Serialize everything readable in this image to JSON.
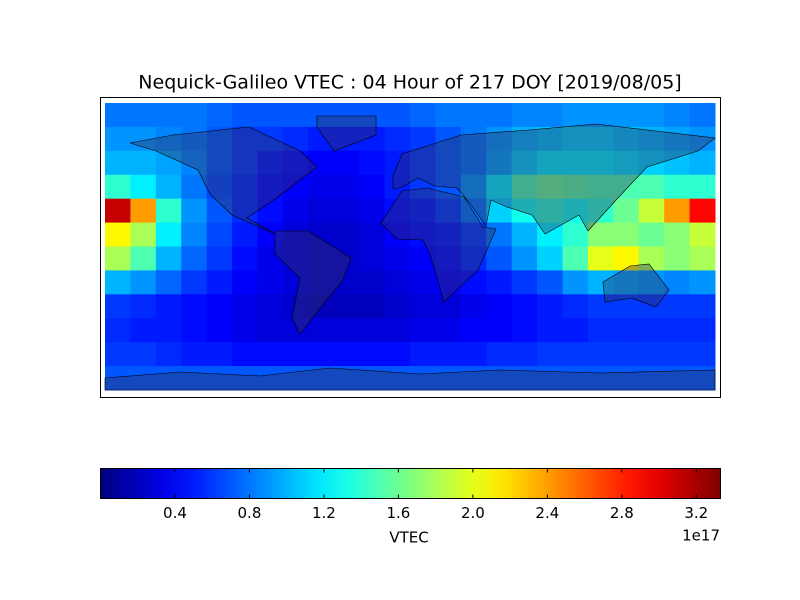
{
  "chart_data": {
    "type": "heatmap",
    "title": "Nequick-Galileo VTEC : 04 Hour of 217 DOY [2019/08/05]",
    "xlim": [
      -180,
      180
    ],
    "ylim": [
      -90,
      90
    ],
    "values": [
      [
        0.8,
        0.8,
        0.8,
        0.8,
        0.75,
        0.7,
        0.7,
        0.7,
        0.7,
        0.7,
        0.7,
        0.7,
        0.75,
        0.8,
        0.8,
        0.8,
        0.85,
        0.85,
        0.9,
        0.9,
        0.9,
        0.9,
        0.85,
        0.8
      ],
      [
        0.9,
        0.9,
        0.85,
        0.8,
        0.7,
        0.6,
        0.6,
        0.55,
        0.5,
        0.5,
        0.5,
        0.55,
        0.6,
        0.7,
        0.8,
        0.9,
        1.0,
        1.05,
        1.1,
        1.1,
        1.05,
        1.0,
        0.95,
        0.9
      ],
      [
        1.0,
        1.0,
        0.95,
        0.85,
        0.7,
        0.6,
        0.5,
        0.45,
        0.4,
        0.4,
        0.45,
        0.5,
        0.6,
        0.7,
        0.8,
        0.95,
        1.1,
        1.2,
        1.2,
        1.2,
        1.15,
        1.1,
        1.05,
        1.0
      ],
      [
        1.4,
        1.2,
        1.0,
        0.8,
        0.65,
        0.55,
        0.45,
        0.4,
        0.35,
        0.35,
        0.4,
        0.5,
        0.6,
        0.7,
        0.9,
        1.2,
        1.5,
        1.6,
        1.55,
        1.5,
        1.5,
        1.5,
        1.4,
        1.4
      ],
      [
        3.1,
        2.4,
        1.4,
        0.9,
        0.7,
        0.55,
        0.45,
        0.35,
        0.3,
        0.3,
        0.35,
        0.45,
        0.5,
        0.6,
        0.8,
        1.1,
        1.3,
        1.4,
        1.3,
        1.4,
        1.6,
        1.9,
        2.4,
        2.9
      ],
      [
        2.1,
        1.8,
        1.2,
        0.85,
        0.65,
        0.5,
        0.4,
        0.3,
        0.25,
        0.25,
        0.3,
        0.4,
        0.45,
        0.5,
        0.6,
        0.8,
        1.0,
        1.2,
        1.4,
        1.7,
        1.7,
        1.6,
        1.7,
        1.9
      ],
      [
        1.8,
        1.5,
        1.0,
        0.75,
        0.6,
        0.45,
        0.35,
        0.3,
        0.25,
        0.25,
        0.3,
        0.35,
        0.4,
        0.45,
        0.55,
        0.7,
        0.9,
        1.1,
        1.5,
        2.0,
        2.1,
        1.8,
        1.7,
        1.8
      ],
      [
        1.0,
        0.9,
        0.75,
        0.6,
        0.5,
        0.4,
        0.35,
        0.3,
        0.25,
        0.25,
        0.25,
        0.3,
        0.35,
        0.4,
        0.45,
        0.5,
        0.6,
        0.7,
        0.9,
        1.0,
        0.95,
        0.9,
        0.85,
        0.9
      ],
      [
        0.6,
        0.55,
        0.5,
        0.45,
        0.4,
        0.35,
        0.3,
        0.25,
        0.2,
        0.2,
        0.2,
        0.25,
        0.3,
        0.3,
        0.35,
        0.4,
        0.45,
        0.5,
        0.55,
        0.6,
        0.6,
        0.6,
        0.6,
        0.6
      ],
      [
        0.55,
        0.5,
        0.5,
        0.45,
        0.4,
        0.35,
        0.3,
        0.3,
        0.3,
        0.3,
        0.3,
        0.3,
        0.35,
        0.35,
        0.4,
        0.4,
        0.45,
        0.5,
        0.5,
        0.55,
        0.55,
        0.55,
        0.55,
        0.55
      ],
      [
        0.6,
        0.6,
        0.55,
        0.5,
        0.5,
        0.45,
        0.45,
        0.45,
        0.45,
        0.45,
        0.45,
        0.45,
        0.5,
        0.5,
        0.5,
        0.55,
        0.55,
        0.6,
        0.6,
        0.6,
        0.6,
        0.6,
        0.6,
        0.6
      ],
      [
        0.7,
        0.7,
        0.7,
        0.7,
        0.7,
        0.7,
        0.7,
        0.7,
        0.7,
        0.7,
        0.7,
        0.7,
        0.7,
        0.7,
        0.7,
        0.7,
        0.7,
        0.7,
        0.7,
        0.7,
        0.7,
        0.7,
        0.7,
        0.7
      ]
    ],
    "colormap": "jet",
    "clim": [
      0.0,
      3.33
    ],
    "colorbar": {
      "ticks": [
        0.4,
        0.8,
        1.2,
        1.6,
        {
          "value": 2,
          "label": "2.0"
        },
        2.4,
        2.8,
        3.2
      ],
      "label": "VTEC",
      "offset_label": "1e17"
    }
  }
}
